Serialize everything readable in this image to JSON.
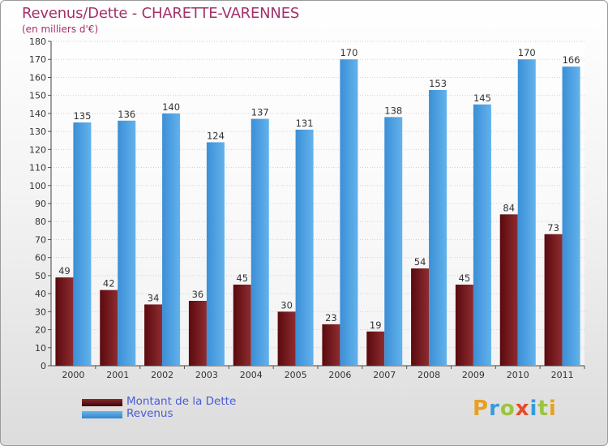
{
  "chart_data": {
    "type": "bar",
    "title": "Revenus/Dette - CHARETTE-VARENNES",
    "subtitle": "(en milliers d'€)",
    "categories": [
      "2000",
      "2001",
      "2002",
      "2003",
      "2004",
      "2005",
      "2006",
      "2007",
      "2008",
      "2009",
      "2010",
      "2011"
    ],
    "series": [
      {
        "name": "Montant de la Dette",
        "color": "#7a1a1e",
        "values": [
          49,
          42,
          34,
          36,
          45,
          30,
          23,
          19,
          54,
          45,
          84,
          73
        ]
      },
      {
        "name": "Revenus",
        "color": "#4ea0e0",
        "values": [
          135,
          136,
          140,
          124,
          137,
          131,
          170,
          138,
          153,
          145,
          170,
          166
        ]
      }
    ],
    "ylim": [
      0,
      180
    ],
    "ytick_step": 10,
    "grid": true,
    "legend_position": "bottom-left"
  },
  "logo": {
    "text": "Proxiti",
    "letters": [
      {
        "char": "P",
        "color": "#e8a020"
      },
      {
        "char": "r",
        "color": "#3a9ad9"
      },
      {
        "char": "o",
        "color": "#9bc53d"
      },
      {
        "char": "x",
        "color": "#e84a2a"
      },
      {
        "char": "i",
        "color": "#3a9ad9"
      },
      {
        "char": "t",
        "color": "#9bc53d"
      },
      {
        "char": "i",
        "color": "#e8a020"
      }
    ]
  }
}
